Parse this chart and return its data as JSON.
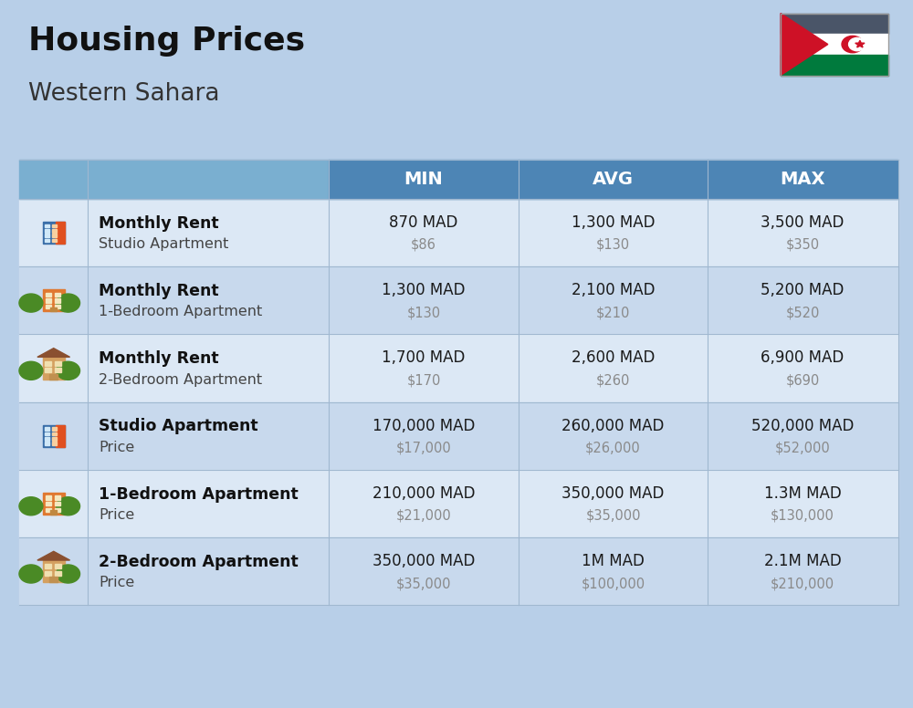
{
  "title": "Housing Prices",
  "subtitle": "Western Sahara",
  "background_color": "#b8cfe8",
  "header_bg_color": "#4d85b5",
  "header_text_color": "#ffffff",
  "row_bg_colors": [
    "#dce8f5",
    "#c8d9ed"
  ],
  "col_headers": [
    "MIN",
    "AVG",
    "MAX"
  ],
  "rows": [
    {
      "label_bold": "Monthly Rent",
      "label_light": "Studio Apartment",
      "icon_type": "blue_red",
      "min_mad": "870 MAD",
      "min_usd": "$86",
      "avg_mad": "1,300 MAD",
      "avg_usd": "$130",
      "max_mad": "3,500 MAD",
      "max_usd": "$350"
    },
    {
      "label_bold": "Monthly Rent",
      "label_light": "1-Bedroom Apartment",
      "icon_type": "orange_green",
      "min_mad": "1,300 MAD",
      "min_usd": "$130",
      "avg_mad": "2,100 MAD",
      "avg_usd": "$210",
      "max_mad": "5,200 MAD",
      "max_usd": "$520"
    },
    {
      "label_bold": "Monthly Rent",
      "label_light": "2-Bedroom Apartment",
      "icon_type": "tan_brown",
      "min_mad": "1,700 MAD",
      "min_usd": "$170",
      "avg_mad": "2,600 MAD",
      "avg_usd": "$260",
      "max_mad": "6,900 MAD",
      "max_usd": "$690"
    },
    {
      "label_bold": "Studio Apartment",
      "label_light": "Price",
      "icon_type": "blue_red",
      "min_mad": "170,000 MAD",
      "min_usd": "$17,000",
      "avg_mad": "260,000 MAD",
      "avg_usd": "$26,000",
      "max_mad": "520,000 MAD",
      "max_usd": "$52,000"
    },
    {
      "label_bold": "1-Bedroom Apartment",
      "label_light": "Price",
      "icon_type": "orange_green",
      "min_mad": "210,000 MAD",
      "min_usd": "$21,000",
      "avg_mad": "350,000 MAD",
      "avg_usd": "$35,000",
      "max_mad": "1.3M MAD",
      "max_usd": "$130,000"
    },
    {
      "label_bold": "2-Bedroom Apartment",
      "label_light": "Price",
      "icon_type": "tan_brown",
      "min_mad": "350,000 MAD",
      "min_usd": "$35,000",
      "avg_mad": "1M MAD",
      "avg_usd": "$100,000",
      "max_mad": "2.1M MAD",
      "max_usd": "$210,000"
    }
  ],
  "usd_color": "#8a8a8a",
  "mad_color": "#1a1a1a",
  "label_bold_color": "#111111",
  "label_light_color": "#444444",
  "divider_color": "#a0b8d0",
  "flag_black": "#4a5568",
  "flag_white": "#ffffff",
  "flag_green": "#007a3d",
  "flag_red": "#ce1126"
}
